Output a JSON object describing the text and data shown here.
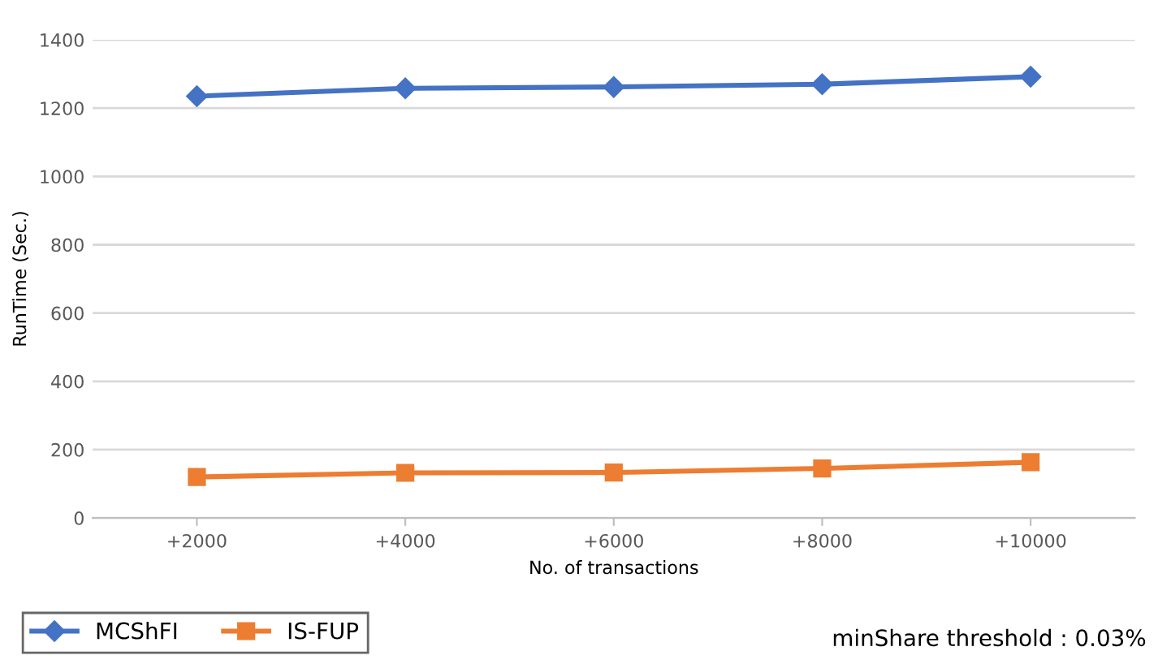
{
  "chart_data": {
    "type": "line",
    "xlabel": "No. of transactions",
    "ylabel": "RunTime (Sec.)",
    "categories": [
      "+2000",
      "+4000",
      "+6000",
      "+8000",
      "+10000"
    ],
    "series": [
      {
        "name": "MCShFI",
        "color": "#4472c4",
        "marker": "diamond",
        "values": [
          1235,
          1258,
          1262,
          1270,
          1292
        ]
      },
      {
        "name": "IS-FUP",
        "color": "#ed7d31",
        "marker": "square",
        "values": [
          120,
          132,
          133,
          145,
          163
        ]
      }
    ],
    "ylim": [
      0,
      1400
    ],
    "yticks": [
      0,
      200,
      400,
      600,
      800,
      1000,
      1200,
      1400
    ],
    "grid": "y",
    "legend": "bottom left",
    "annotations": [
      "minShare threshold : 0.03%"
    ]
  }
}
